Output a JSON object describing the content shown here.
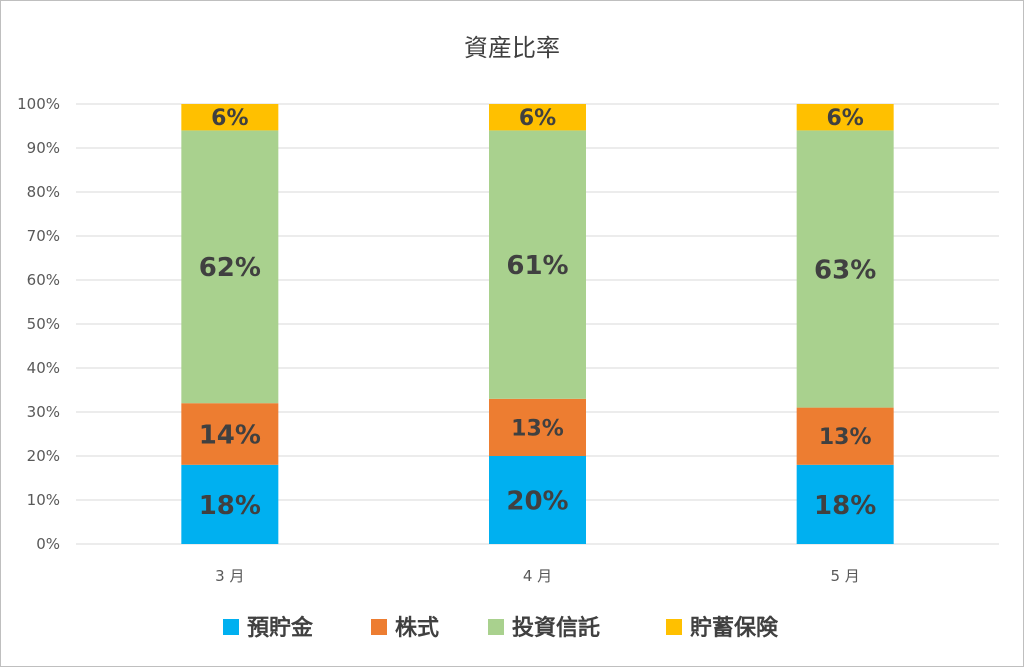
{
  "chart_data": {
    "type": "bar",
    "stacked": true,
    "title": "資産比率",
    "categories": [
      "3 月",
      "4 月",
      "5 月"
    ],
    "ylim": [
      0,
      100
    ],
    "yticks": [
      "0%",
      "10%",
      "20%",
      "30%",
      "40%",
      "50%",
      "60%",
      "70%",
      "80%",
      "90%",
      "100%"
    ],
    "grid": true,
    "legend_position": "bottom",
    "series": [
      {
        "name": "預貯金",
        "color": "#00b0f0",
        "values": [
          18,
          20,
          18
        ],
        "labels": [
          "18%",
          "20%",
          "18%"
        ]
      },
      {
        "name": "株式",
        "color": "#ed7d31",
        "values": [
          14,
          13,
          13
        ],
        "labels": [
          "14%",
          "13%",
          "13%"
        ]
      },
      {
        "name": "投資信託",
        "color": "#a9d18e",
        "values": [
          62,
          61,
          63
        ],
        "labels": [
          "62%",
          "61%",
          "63%"
        ]
      },
      {
        "name": "貯蓄保険",
        "color": "#ffc000",
        "values": [
          6,
          6,
          6
        ],
        "labels": [
          "6%",
          "6%",
          "6%"
        ]
      }
    ]
  }
}
